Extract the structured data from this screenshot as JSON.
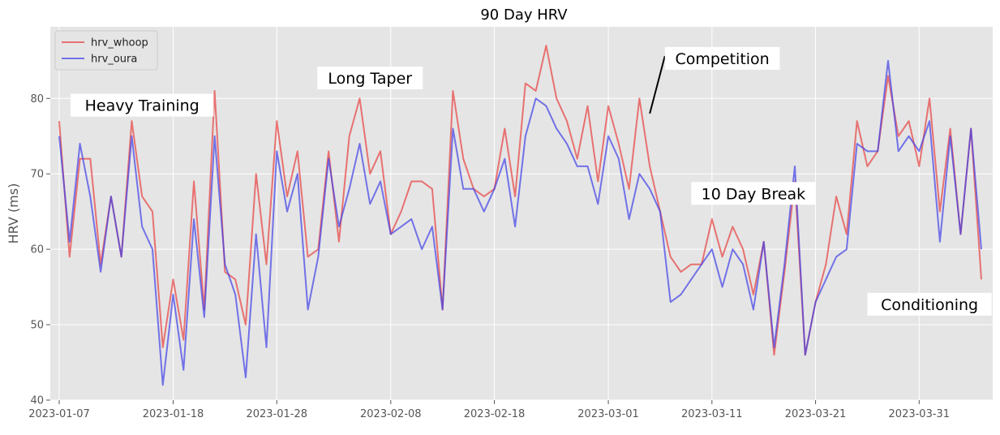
{
  "chart_data": {
    "type": "line",
    "title": "90 Day HRV",
    "xlabel": "",
    "ylabel": "HRV (ms)",
    "x_start": "2023-01-07",
    "ylim": [
      40,
      89.5
    ],
    "yticks": [
      40,
      50,
      60,
      70,
      80
    ],
    "xticks": [
      "2023-01-07",
      "2023-01-18",
      "2023-01-28",
      "2023-02-08",
      "2023-02-18",
      "2023-03-01",
      "2023-03-11",
      "2023-03-21",
      "2023-03-31"
    ],
    "grid": true,
    "legend_position": "top-left",
    "series": [
      {
        "name": "hrv_whoop",
        "color": "#e8403f",
        "values": [
          77,
          59,
          72,
          72,
          58,
          67,
          59,
          77,
          67,
          65,
          47,
          56,
          48,
          69,
          52,
          81,
          57,
          56,
          50,
          70,
          58,
          77,
          67,
          73,
          59,
          60,
          73,
          61,
          75,
          80,
          70,
          73,
          62,
          65,
          69,
          69,
          68,
          52,
          81,
          72,
          68,
          67,
          68,
          76,
          67,
          82,
          81,
          87,
          80,
          77,
          72,
          79,
          69,
          79,
          74,
          68,
          80,
          71,
          65,
          59,
          57,
          58,
          58,
          64,
          59,
          63,
          60,
          54,
          61,
          46,
          57,
          69,
          46,
          53,
          58,
          67,
          62,
          77,
          71,
          73,
          83,
          75,
          77,
          71,
          80,
          65,
          76,
          62,
          76,
          56
        ]
      },
      {
        "name": "hrv_oura",
        "color": "#4040e8",
        "values": [
          75,
          61,
          74,
          67,
          57,
          67,
          59,
          75,
          63,
          60,
          42,
          54,
          44,
          64,
          51,
          75,
          58,
          54,
          43,
          62,
          47,
          73,
          65,
          70,
          52,
          59,
          72,
          63,
          68,
          74,
          66,
          69,
          62,
          63,
          64,
          60,
          63,
          52,
          76,
          68,
          68,
          65,
          68,
          72,
          63,
          75,
          80,
          79,
          76,
          74,
          71,
          71,
          66,
          75,
          72,
          64,
          70,
          68,
          65,
          53,
          54,
          56,
          58,
          60,
          55,
          60,
          58,
          52,
          61,
          47,
          58,
          71,
          46,
          53,
          56,
          59,
          60,
          74,
          73,
          73,
          85,
          73,
          75,
          73,
          77,
          61,
          75,
          62,
          76,
          60
        ]
      }
    ],
    "annotations": [
      {
        "text": "Heavy Training",
        "x": "2023-01-15",
        "y": 79
      },
      {
        "text": "Long Taper",
        "x": "2023-02-06",
        "y": 82.6
      },
      {
        "text": "Competition",
        "x": "2023-03-12",
        "y": 85.2,
        "arrow_to_x": "2023-03-05",
        "arrow_to_y": 78
      },
      {
        "text": "10 Day Break",
        "x": "2023-03-15",
        "y": 67.3
      },
      {
        "text": "Conditioning",
        "x": "2023-04-01",
        "y": 52.6
      }
    ]
  }
}
